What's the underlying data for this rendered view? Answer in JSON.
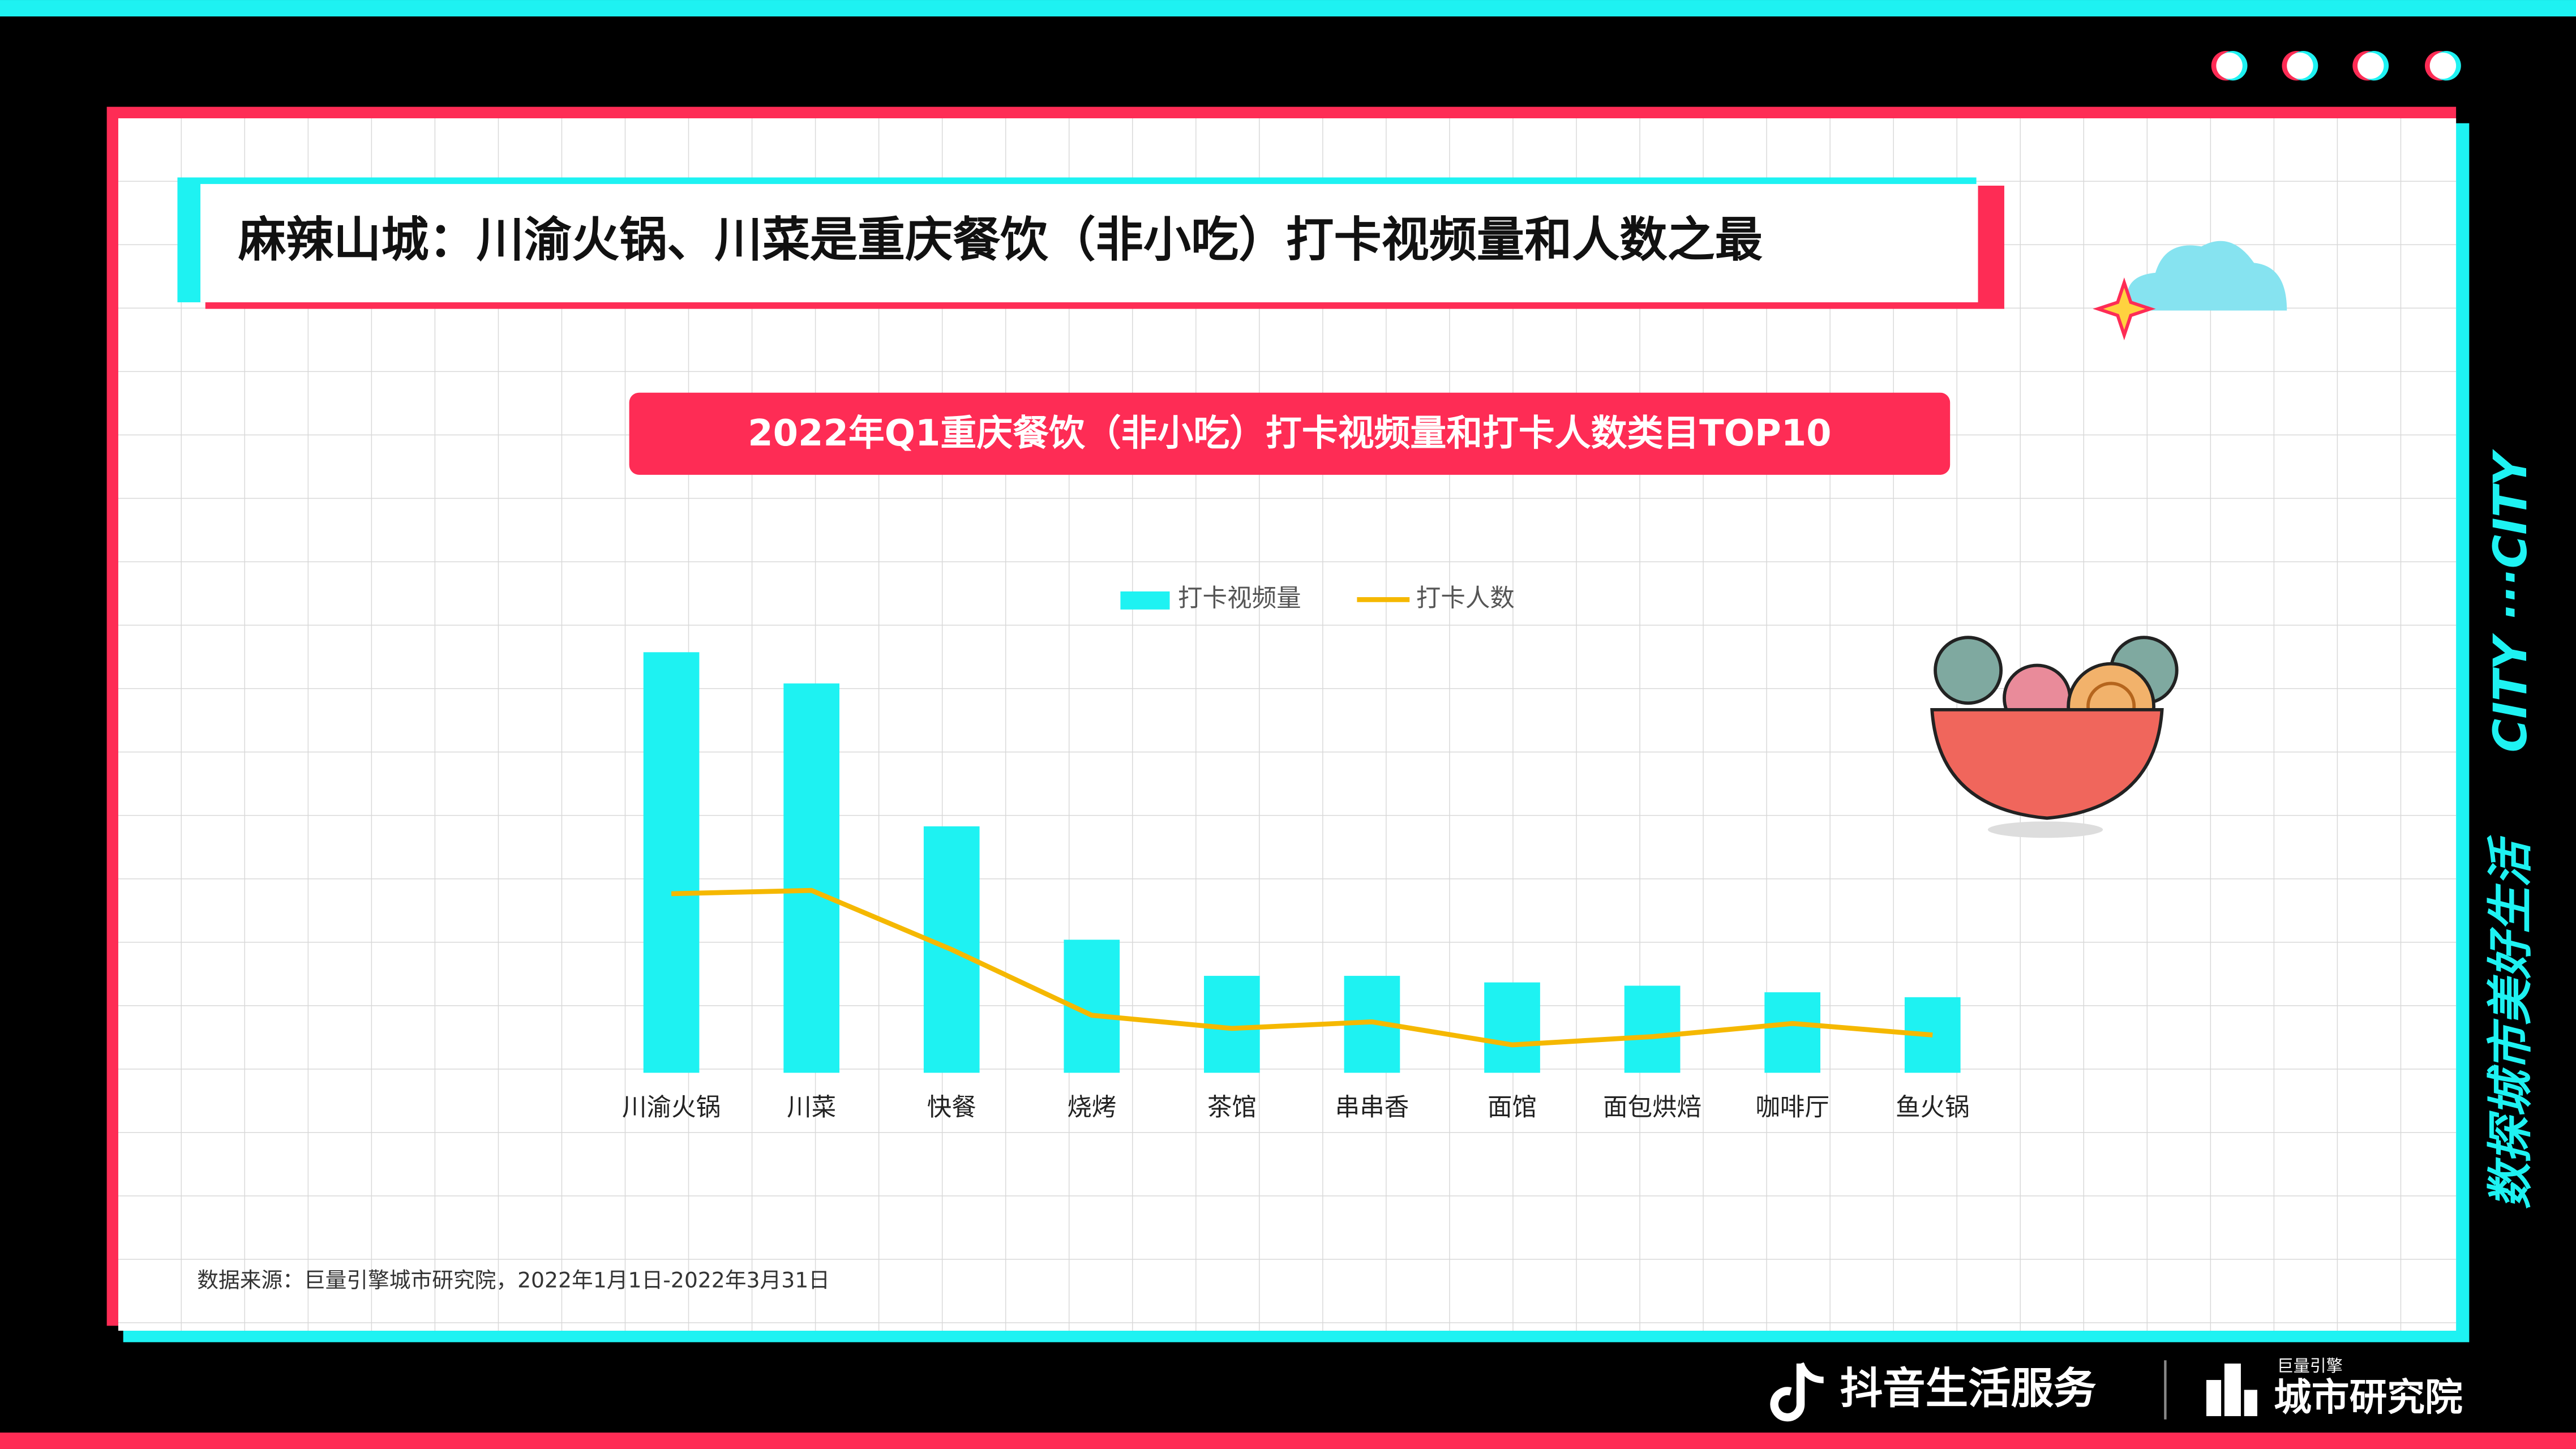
{
  "header": {
    "title": "麻辣山城：川渝火锅、川菜是重庆餐饮（非小吃）打卡视频量和人数之最"
  },
  "chart_data": {
    "type": "bar-line",
    "title": "2022年Q1重庆餐饮（非小吃）打卡视频量和打卡人数类目TOP10",
    "categories": [
      "川渝火锅",
      "川菜",
      "快餐",
      "烧烤",
      "茶馆",
      "串串香",
      "面馆",
      "面包烘焙",
      "咖啡厅",
      "鱼火锅"
    ],
    "series": [
      {
        "name": "打卡视频量",
        "type": "bar",
        "color": "#1ef2f2",
        "values": [
          256,
          237,
          150,
          81,
          59,
          59,
          55,
          53,
          49,
          46
        ]
      },
      {
        "name": "打卡人数",
        "type": "line",
        "color": "#f5b800",
        "values": [
          109,
          111,
          75,
          35,
          27,
          31,
          17,
          22,
          30,
          23
        ]
      }
    ],
    "legend": "top"
  },
  "source": "数据来源：巨量引擎城市研究院，2022年1月1日-2022年3月31日",
  "side": {
    "slogan": "数探城市美好生活",
    "city": "CITY ···CITY"
  },
  "footer": {
    "brand": "抖音生活服务",
    "org_small": "巨量引擎",
    "org": "城市研究院"
  }
}
